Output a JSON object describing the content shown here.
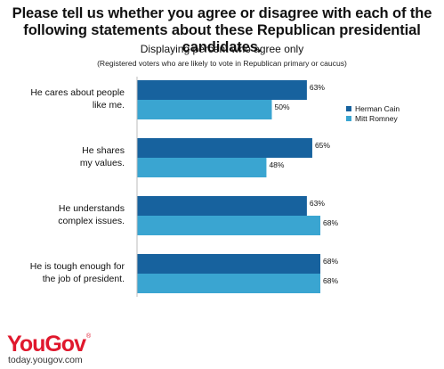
{
  "header": {
    "title_line1": "Please tell us whether you agree or disagree with each of the",
    "title_line2": "following statements about these Republican presidential candidates.",
    "subtitle": "Displaying percent who agree only",
    "note": "(Registered voters who are likely to vote in Republican primary or caucus)"
  },
  "brand": {
    "logo_text": "YouGov",
    "logo_mark": "®",
    "website": "today.yougov.com"
  },
  "chart_data": {
    "type": "bar",
    "orientation": "horizontal",
    "categories": [
      [
        "He cares about people",
        "like me."
      ],
      [
        "He shares",
        "my values."
      ],
      [
        "He understands",
        "complex issues."
      ],
      [
        "He is tough enough for",
        "the job of president."
      ]
    ],
    "series": [
      {
        "name": "Herman Cain",
        "color": "#17629e",
        "values": [
          63,
          65,
          63,
          68
        ]
      },
      {
        "name": "Mitt Romney",
        "color": "#3aa5d1",
        "values": [
          50,
          48,
          68,
          68
        ]
      }
    ],
    "value_suffix": "%",
    "legend_position": "right",
    "grid": false
  }
}
